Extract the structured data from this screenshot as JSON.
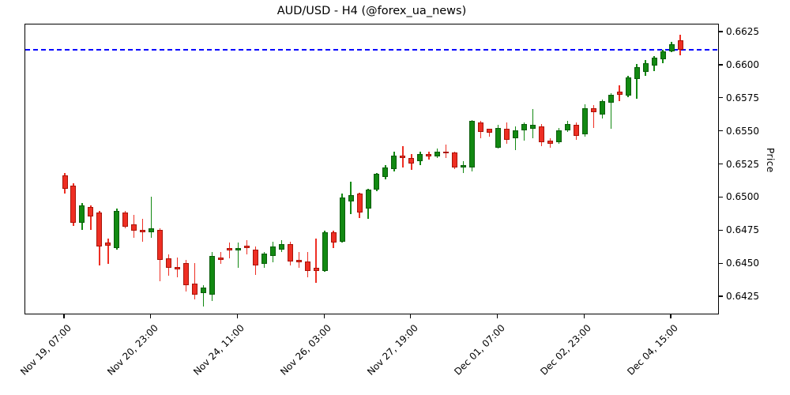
{
  "title": "AUD/USD - H4 (@forex_ua_news)",
  "y_axis": {
    "label": "Price",
    "ticks": [
      0.6425,
      0.645,
      0.6475,
      0.65,
      0.6525,
      0.655,
      0.6575,
      0.66,
      0.6625
    ],
    "decimals": 4
  },
  "x_axis": {
    "tick_labels": [
      "Nov 19, 07:00",
      "Nov 20, 23:00",
      "Nov 24, 11:00",
      "Nov 26, 03:00",
      "Nov 27, 19:00",
      "Dec 01, 07:00",
      "Dec 02, 23:00",
      "Dec 04, 15:00"
    ],
    "tick_bar_indices": [
      0,
      10,
      20,
      30,
      40,
      50,
      60,
      70
    ]
  },
  "colors": {
    "up": "#128912",
    "up_border": "#0a5c0a",
    "down": "#ee2e23",
    "down_border": "#a81408",
    "hline": "#0000ff",
    "axis": "#000000",
    "background": "#ffffff"
  },
  "chart_data": {
    "type": "candlestick",
    "title": "AUD/USD - H4 (@forex_ua_news)",
    "symbol": "AUD/USD",
    "timeframe": "H4",
    "source": "@forex_ua_news",
    "ylabel": "Price",
    "ylim": [
      0.64113,
      0.6631
    ],
    "grid": false,
    "hline_price": 0.6612,
    "x_tick_labels": [
      "Nov 19, 07:00",
      "Nov 20, 23:00",
      "Nov 24, 11:00",
      "Nov 26, 03:00",
      "Nov 27, 19:00",
      "Dec 01, 07:00",
      "Dec 02, 23:00",
      "Dec 04, 15:00"
    ],
    "x_tick_bar_indices": [
      0,
      10,
      20,
      30,
      40,
      50,
      60,
      70
    ],
    "ohlc_order": [
      "open",
      "high",
      "low",
      "close"
    ],
    "candles": [
      [
        0.6517,
        0.6519,
        0.6503,
        0.6507
      ],
      [
        0.6509,
        0.6511,
        0.6479,
        0.6481
      ],
      [
        0.6481,
        0.6496,
        0.6476,
        0.6494
      ],
      [
        0.6493,
        0.6494,
        0.6476,
        0.6486
      ],
      [
        0.6489,
        0.649,
        0.6449,
        0.6463
      ],
      [
        0.6466,
        0.6469,
        0.645,
        0.6464
      ],
      [
        0.6462,
        0.6492,
        0.6461,
        0.649
      ],
      [
        0.6489,
        0.649,
        0.6477,
        0.6478
      ],
      [
        0.648,
        0.6487,
        0.647,
        0.6475
      ],
      [
        0.6476,
        0.6484,
        0.6467,
        0.6474
      ],
      [
        0.6474,
        0.6501,
        0.647,
        0.6477
      ],
      [
        0.6476,
        0.6477,
        0.6437,
        0.6453
      ],
      [
        0.6454,
        0.6457,
        0.6441,
        0.6447
      ],
      [
        0.6448,
        0.6455,
        0.644,
        0.6446
      ],
      [
        0.6451,
        0.6453,
        0.6429,
        0.6434
      ],
      [
        0.6435,
        0.6451,
        0.6423,
        0.6427
      ],
      [
        0.6428,
        0.6434,
        0.6418,
        0.6432
      ],
      [
        0.6427,
        0.6459,
        0.6422,
        0.6456
      ],
      [
        0.6455,
        0.6459,
        0.645,
        0.6453
      ],
      [
        0.6462,
        0.6466,
        0.6454,
        0.646
      ],
      [
        0.646,
        0.6466,
        0.6447,
        0.6462
      ],
      [
        0.6464,
        0.6468,
        0.6457,
        0.6462
      ],
      [
        0.6461,
        0.6463,
        0.6442,
        0.6449
      ],
      [
        0.645,
        0.6459,
        0.6447,
        0.6458
      ],
      [
        0.6456,
        0.6467,
        0.6451,
        0.6463
      ],
      [
        0.6461,
        0.6468,
        0.6459,
        0.6465
      ],
      [
        0.6465,
        0.6467,
        0.6449,
        0.6452
      ],
      [
        0.6453,
        0.6459,
        0.6447,
        0.6451
      ],
      [
        0.6452,
        0.6459,
        0.644,
        0.6445
      ],
      [
        0.6447,
        0.6469,
        0.6436,
        0.6445
      ],
      [
        0.6445,
        0.6475,
        0.6444,
        0.6474
      ],
      [
        0.6474,
        0.6475,
        0.6462,
        0.6466
      ],
      [
        0.6467,
        0.6503,
        0.6466,
        0.65
      ],
      [
        0.6497,
        0.6512,
        0.6488,
        0.6502
      ],
      [
        0.6503,
        0.6504,
        0.6485,
        0.6489
      ],
      [
        0.6492,
        0.6507,
        0.6484,
        0.6506
      ],
      [
        0.6506,
        0.6519,
        0.6505,
        0.6518
      ],
      [
        0.6516,
        0.6525,
        0.6514,
        0.6523
      ],
      [
        0.6522,
        0.6535,
        0.652,
        0.6532
      ],
      [
        0.6532,
        0.6539,
        0.6523,
        0.653
      ],
      [
        0.653,
        0.6533,
        0.6521,
        0.6526
      ],
      [
        0.6528,
        0.6535,
        0.6525,
        0.6533
      ],
      [
        0.6533,
        0.6535,
        0.6529,
        0.6531
      ],
      [
        0.6531,
        0.6537,
        0.653,
        0.6535
      ],
      [
        0.6535,
        0.654,
        0.653,
        0.6534
      ],
      [
        0.6534,
        0.6535,
        0.6522,
        0.6523
      ],
      [
        0.6523,
        0.6528,
        0.6519,
        0.6525
      ],
      [
        0.6523,
        0.6559,
        0.652,
        0.6558
      ],
      [
        0.6557,
        0.6558,
        0.6545,
        0.655
      ],
      [
        0.6552,
        0.6552,
        0.6546,
        0.6549
      ],
      [
        0.6538,
        0.6555,
        0.6537,
        0.6553
      ],
      [
        0.6552,
        0.6557,
        0.6541,
        0.6544
      ],
      [
        0.6545,
        0.6554,
        0.6536,
        0.6551
      ],
      [
        0.6551,
        0.6557,
        0.6543,
        0.6556
      ],
      [
        0.6552,
        0.6567,
        0.6545,
        0.6555
      ],
      [
        0.6554,
        0.6556,
        0.6539,
        0.6542
      ],
      [
        0.6543,
        0.6545,
        0.6538,
        0.6541
      ],
      [
        0.6542,
        0.6553,
        0.6541,
        0.6551
      ],
      [
        0.6551,
        0.6558,
        0.655,
        0.6556
      ],
      [
        0.6555,
        0.6557,
        0.6544,
        0.6547
      ],
      [
        0.6548,
        0.6571,
        0.6546,
        0.6568
      ],
      [
        0.6568,
        0.657,
        0.6553,
        0.6565
      ],
      [
        0.6563,
        0.6574,
        0.656,
        0.6573
      ],
      [
        0.6572,
        0.6579,
        0.6552,
        0.6578
      ],
      [
        0.658,
        0.6585,
        0.6573,
        0.6578
      ],
      [
        0.6577,
        0.6592,
        0.6576,
        0.6591
      ],
      [
        0.659,
        0.6601,
        0.6575,
        0.6599
      ],
      [
        0.6595,
        0.6604,
        0.6592,
        0.6602
      ],
      [
        0.66,
        0.6607,
        0.6596,
        0.6606
      ],
      [
        0.6605,
        0.6612,
        0.6602,
        0.6611
      ],
      [
        0.6611,
        0.6618,
        0.661,
        0.6616
      ],
      [
        0.6619,
        0.6623,
        0.6608,
        0.6612
      ]
    ]
  }
}
